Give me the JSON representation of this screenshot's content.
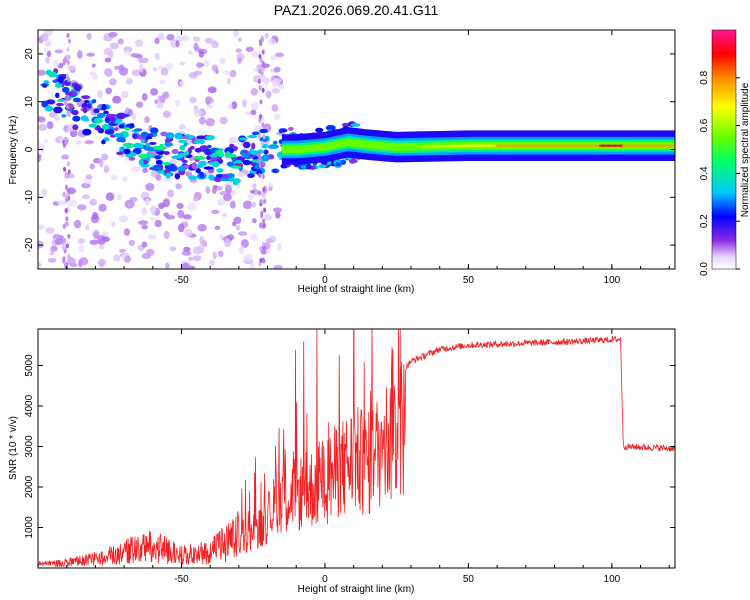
{
  "title": "PAZ1.2026.069.20.41.G11",
  "colors": {
    "snr_line": "#ee2222",
    "axis": "#000000",
    "background": "#ffffff"
  },
  "chart_data": [
    {
      "type": "heatmap",
      "name": "spectrogram",
      "xlabel": "Height of straight line (km)",
      "ylabel": "Frequency (Hz)",
      "xlim": [
        -100,
        122
      ],
      "ylim": [
        -25,
        25
      ],
      "xticks": [
        -50,
        0,
        50,
        100
      ],
      "yticks": [
        -20,
        -10,
        0,
        10,
        20
      ],
      "ridge": {
        "description_values": "dominant frequency (Hz) vs height (km)",
        "points": [
          {
            "x": -92,
            "y": 12
          },
          {
            "x": -85,
            "y": 8
          },
          {
            "x": -78,
            "y": 5
          },
          {
            "x": -70,
            "y": 3
          },
          {
            "x": -62,
            "y": 0
          },
          {
            "x": -55,
            "y": -1
          },
          {
            "x": -48,
            "y": -1.5
          },
          {
            "x": -40,
            "y": -2
          },
          {
            "x": -33,
            "y": -3
          },
          {
            "x": -25,
            "y": -1
          },
          {
            "x": -18,
            "y": 0
          },
          {
            "x": -10,
            "y": 0
          },
          {
            "x": 0,
            "y": 0.5
          },
          {
            "x": 8,
            "y": 1.5
          },
          {
            "x": 15,
            "y": 1
          },
          {
            "x": 25,
            "y": 0.5
          },
          {
            "x": 50,
            "y": 0.8
          },
          {
            "x": 80,
            "y": 0.8
          },
          {
            "x": 100,
            "y": 0.8
          },
          {
            "x": 122,
            "y": 0.8
          }
        ]
      },
      "colorbar": {
        "label": "Normalized spectral amplitude",
        "range": [
          0,
          1
        ],
        "ticks": [
          0.0,
          0.2,
          0.4,
          0.6,
          0.8
        ]
      }
    },
    {
      "type": "line",
      "name": "snr",
      "xlabel": "Height of straight line (km)",
      "ylabel": "SNR (10 * v/v)",
      "xlim": [
        -100,
        122
      ],
      "ylim": [
        0,
        5900
      ],
      "xticks": [
        -50,
        0,
        50,
        100
      ],
      "yticks": [
        1000,
        2000,
        3000,
        4000,
        5000
      ],
      "envelope": [
        {
          "x": -100,
          "y": 100
        },
        {
          "x": -90,
          "y": 150
        },
        {
          "x": -80,
          "y": 250
        },
        {
          "x": -70,
          "y": 450
        },
        {
          "x": -60,
          "y": 600
        },
        {
          "x": -50,
          "y": 350
        },
        {
          "x": -40,
          "y": 450
        },
        {
          "x": -30,
          "y": 900
        },
        {
          "x": -22,
          "y": 1400
        },
        {
          "x": -15,
          "y": 2500
        },
        {
          "x": -10,
          "y": 2500
        },
        {
          "x": -5,
          "y": 2700
        },
        {
          "x": 0,
          "y": 3000
        },
        {
          "x": 5,
          "y": 3300
        },
        {
          "x": 10,
          "y": 3700
        },
        {
          "x": 15,
          "y": 3500
        },
        {
          "x": 20,
          "y": 4200
        },
        {
          "x": 25,
          "y": 4700
        },
        {
          "x": 30,
          "y": 5100
        },
        {
          "x": 40,
          "y": 5400
        },
        {
          "x": 50,
          "y": 5500
        },
        {
          "x": 70,
          "y": 5550
        },
        {
          "x": 90,
          "y": 5600
        },
        {
          "x": 103,
          "y": 5650
        },
        {
          "x": 104,
          "y": 3000
        },
        {
          "x": 122,
          "y": 2950
        }
      ]
    }
  ]
}
